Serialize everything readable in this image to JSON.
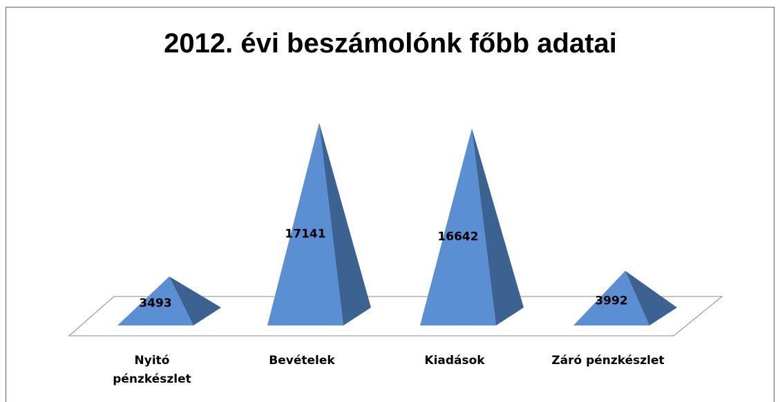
{
  "chart_data": {
    "type": "pyramid",
    "title": "2012. évi beszámolónk főbb adatai",
    "categories": [
      "Nyitó pénzkészlet",
      "Bevételek",
      "Kiadások",
      "Záró pénzkészlet"
    ],
    "values": [
      3493,
      17141,
      16642,
      3992
    ],
    "color": "#5b8fd3",
    "side_color": "#3c6291"
  }
}
